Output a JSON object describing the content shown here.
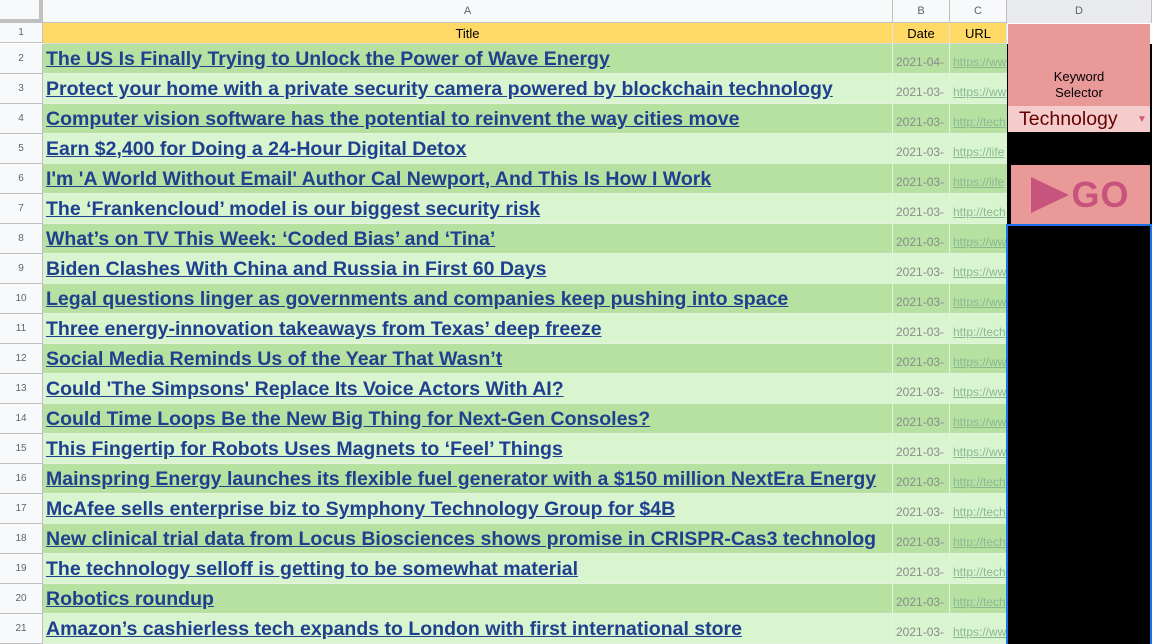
{
  "columns": {
    "corner": "",
    "a": "A",
    "b": "B",
    "c": "C",
    "d": "D"
  },
  "header_row": {
    "row_number": "1",
    "title": "Title",
    "date": "Date",
    "url": "URL"
  },
  "rows": [
    {
      "num": "2",
      "title": "The US Is Finally Trying to Unlock the Power of Wave Energy",
      "date": "2021-04-",
      "url": "https://ww"
    },
    {
      "num": "3",
      "title": "Protect your home with a private security camera powered by blockchain technology",
      "date": "2021-03-",
      "url": "https://ww"
    },
    {
      "num": "4",
      "title": "Computer vision software has the potential to reinvent the way cities move",
      "date": "2021-03-",
      "url": "http://tech"
    },
    {
      "num": "5",
      "title": "Earn $2,400 for Doing a 24-Hour Digital Detox",
      "date": "2021-03-",
      "url": "https://life"
    },
    {
      "num": "6",
      "title": "I'm 'A World Without Email' Author Cal Newport, And This Is How I Work",
      "date": "2021-03-",
      "url": "https://life"
    },
    {
      "num": "7",
      "title": "The ‘Frankencloud’ model is our biggest security risk",
      "date": "2021-03-",
      "url": "http://tech"
    },
    {
      "num": "8",
      "title": "What’s on TV This Week: ‘Coded Bias’ and ‘Tina’",
      "date": "2021-03-",
      "url": "https://ww"
    },
    {
      "num": "9",
      "title": "Biden Clashes With China and Russia in First 60 Days",
      "date": "2021-03-",
      "url": "https://ww"
    },
    {
      "num": "10",
      "title": "Legal questions linger as governments and companies keep pushing into space",
      "date": "2021-03-",
      "url": "https://ww"
    },
    {
      "num": "11",
      "title": "Three energy-innovation takeaways from Texas’ deep freeze",
      "date": "2021-03-",
      "url": "http://tech"
    },
    {
      "num": "12",
      "title": "Social Media Reminds Us of the Year That Wasn’t",
      "date": "2021-03-",
      "url": "https://ww"
    },
    {
      "num": "13",
      "title": "Could 'The Simpsons' Replace Its Voice Actors With AI?",
      "date": "2021-03-",
      "url": "https://ww"
    },
    {
      "num": "14",
      "title": "Could Time Loops Be the New Big Thing for Next-Gen Consoles?",
      "date": "2021-03-",
      "url": "https://ww"
    },
    {
      "num": "15",
      "title": "This Fingertip for Robots Uses Magnets to ‘Feel’ Things",
      "date": "2021-03-",
      "url": "https://ww"
    },
    {
      "num": "16",
      "title": "Mainspring Energy launches its flexible fuel generator with a $150 million NextEra Energy",
      "date": "2021-03-",
      "url": "http://tech"
    },
    {
      "num": "17",
      "title": "McAfee sells enterprise biz to Symphony Technology Group for $4B",
      "date": "2021-03-",
      "url": "http://tech"
    },
    {
      "num": "18",
      "title": "New clinical trial data from Locus Biosciences shows promise in CRISPR-Cas3 technolog",
      "date": "2021-03-",
      "url": "http://tech"
    },
    {
      "num": "19",
      "title": "The technology selloff is getting to be somewhat material",
      "date": "2021-03-",
      "url": "http://tech"
    },
    {
      "num": "20",
      "title": "Robotics roundup",
      "date": "2021-03-",
      "url": "http://tech"
    },
    {
      "num": "21",
      "title": "Amazon’s cashierless tech expands to London with first international store",
      "date": "2021-03-",
      "url": "https://ww"
    }
  ],
  "keyword_selector": {
    "label": "Keyword\nSelector",
    "value": "Technology",
    "dropdown_icon": "chevron-down-icon"
  },
  "go_button": {
    "label": "GO",
    "icon": "play-triangle-icon"
  },
  "colors": {
    "header_fill": "#ffd966",
    "row_fill_a": "#b7e1a1",
    "row_fill_b": "#d9f5d0",
    "link_color": "#1f3f8f",
    "keyword_fill": "#ea9999",
    "dropdown_fill": "#f4cccc",
    "go_accent": "#c7547d",
    "selection_border": "#1a73e8"
  }
}
